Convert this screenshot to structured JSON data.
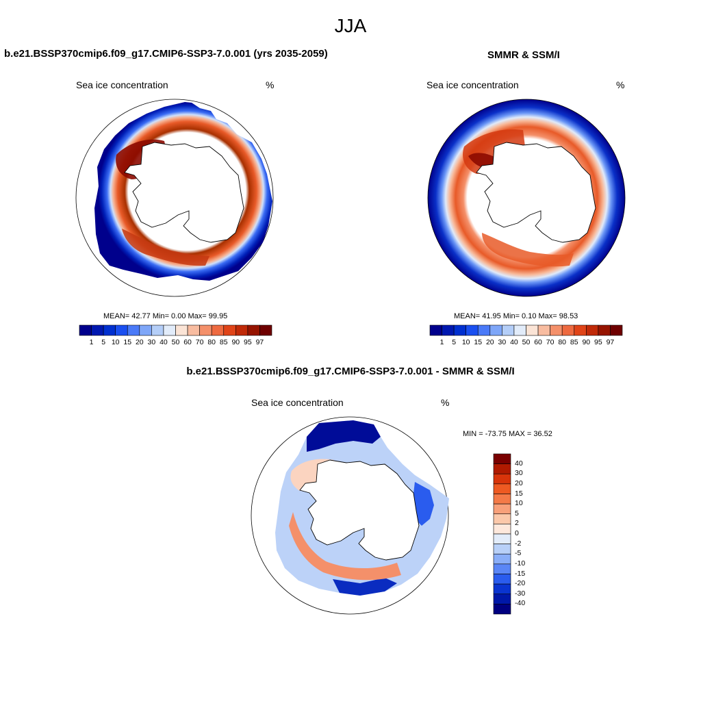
{
  "season": "JJA",
  "panels": {
    "model": {
      "title": "b.e21.BSSP370cmip6.f09_g17.CMIP6-SSP3-7.0.001 (yrs 2035-2059)",
      "variable": "Sea ice concentration",
      "units": "%",
      "stats": "MEAN=  42.77  Min=   0.00  Max=  99.95"
    },
    "obs": {
      "title": "SMMR & SSM/I",
      "variable": "Sea ice concentration",
      "units": "%",
      "stats": "MEAN=  41.95  Min=   0.10  Max=  98.53"
    },
    "diff": {
      "title": "b.e21.BSSP370cmip6.f09_g17.CMIP6-SSP3-7.0.001 - SMMR & SSM/I",
      "variable": "Sea ice concentration",
      "units": "%",
      "stats": "MIN = -73.75 MAX =  36.52"
    }
  },
  "colorbar_conc": {
    "labels": [
      "1",
      "5",
      "10",
      "15",
      "20",
      "30",
      "40",
      "50",
      "60",
      "70",
      "80",
      "85",
      "90",
      "95",
      "97"
    ],
    "colors": [
      "#00008c",
      "#0018b0",
      "#0030d0",
      "#1a4ff0",
      "#4a7af8",
      "#7ea6f8",
      "#b4cef8",
      "#e2ecfa",
      "#fbe4d6",
      "#f8bca0",
      "#f4906a",
      "#ee6a40",
      "#e04418",
      "#c02a08",
      "#961400",
      "#6e0000"
    ]
  },
  "colorbar_diff": {
    "labels": [
      "40",
      "30",
      "20",
      "15",
      "10",
      "5",
      "2",
      "0",
      "-2",
      "-5",
      "-10",
      "-15",
      "-20",
      "-30",
      "-40"
    ],
    "colors": [
      "#7a0000",
      "#b01a00",
      "#d8340a",
      "#ee5a22",
      "#f47a48",
      "#f8a07a",
      "#fbc8aa",
      "#fde8dc",
      "#e2ecfa",
      "#b8d0f8",
      "#8aaef8",
      "#5a86f6",
      "#2a5cee",
      "#0a34d0",
      "#0018a8",
      "#000080"
    ]
  }
}
